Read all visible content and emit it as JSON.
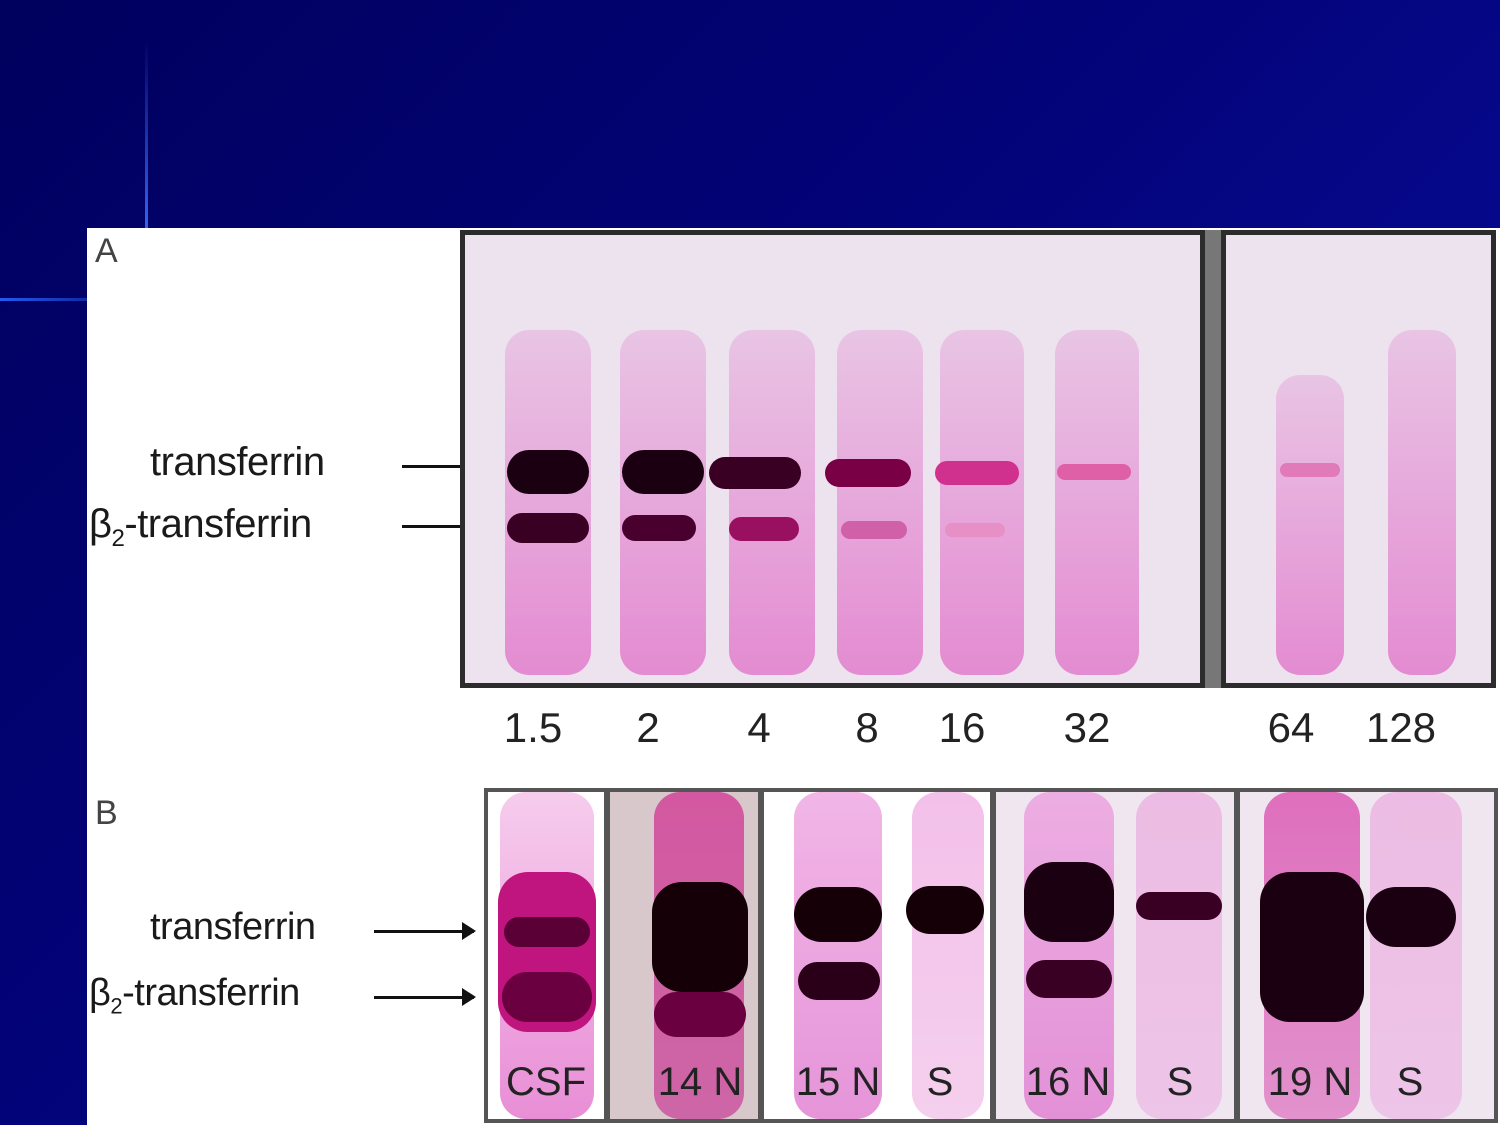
{
  "panel_a": {
    "letter": "A",
    "labels": {
      "upper": "transferrin",
      "lower_prefix": "β",
      "lower_sub": "2",
      "lower_suffix": "-transferrin"
    },
    "lanes": [
      "1.5",
      "2",
      "4",
      "8",
      "16",
      "32",
      "64",
      "128"
    ]
  },
  "panel_b": {
    "letter": "B",
    "labels": {
      "upper": "transferrin",
      "lower_prefix": "β",
      "lower_sub": "2",
      "lower_suffix": "-transferrin"
    },
    "lanes": [
      "CSF",
      "14 N",
      "15 N",
      "S",
      "16 N",
      "S",
      "19 N",
      "S"
    ]
  },
  "colors": {
    "slide_background": "#03037a",
    "band_dark": "#1a0010",
    "band_magenta": "#c0147e",
    "lane_pink": "#e07ad0"
  }
}
